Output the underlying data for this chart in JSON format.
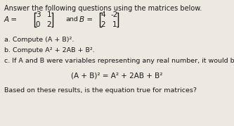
{
  "title": "Answer the following questions using the matrices below.",
  "matrix_A": [
    [
      3,
      1
    ],
    [
      0,
      2
    ]
  ],
  "matrix_B": [
    [
      4,
      -2
    ],
    [
      2,
      1
    ]
  ],
  "part_a": "a. Compute (A + B)².",
  "part_b": "b. Compute A² + 2AB + B².",
  "part_c_intro": "c. If A and B were variables representing any real number, it would be true that:",
  "part_c_eq": "(A + B)² = A² + 2AB + B²",
  "part_c_followup": "Based on these results, is the equation true for matrices?",
  "bg_color": "#ede8e0",
  "text_color": "#1a1a1a",
  "fs_title": 7.0,
  "fs_body": 6.8,
  "fs_matrix": 7.5,
  "fs_eq": 7.5
}
